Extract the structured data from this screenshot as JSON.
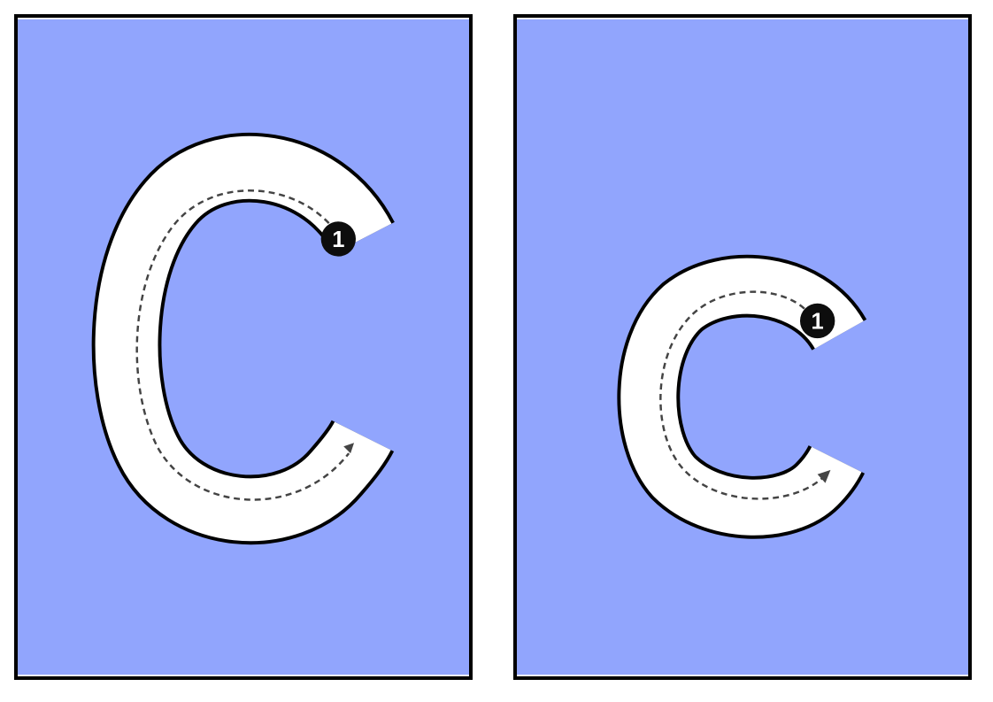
{
  "worksheet": {
    "cards": [
      {
        "id": "uppercase",
        "letter_case": "uppercase",
        "start_marker": "1"
      },
      {
        "id": "lowercase",
        "letter_case": "lowercase",
        "start_marker": "1"
      }
    ]
  },
  "colors": {
    "card_background": "#91a5fd",
    "border": "#000000",
    "letter_fill": "#ffffff",
    "letter_outline": "#000000",
    "guide_line": "#444444",
    "marker_fill": "#0d0d0d",
    "marker_text": "#ffffff"
  }
}
